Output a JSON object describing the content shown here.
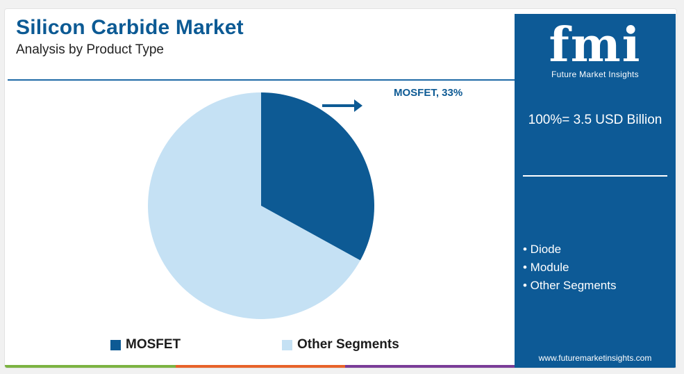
{
  "header": {
    "title": "Silicon Carbide Market",
    "subtitle": "Analysis by Product Type"
  },
  "chart_data": {
    "type": "pie",
    "categories": [
      "MOSFET",
      "Other Segments"
    ],
    "values": [
      33,
      67
    ],
    "colors": [
      "#0d5a94",
      "#c5e1f4"
    ],
    "annotation": "MOSFET, 33%",
    "legend": [
      {
        "label": "MOSFET",
        "color": "#0d5a94"
      },
      {
        "label": "Other Segments",
        "color": "#c5e1f4"
      }
    ],
    "legend_position": "bottom"
  },
  "sidebar": {
    "logo_text": "fmi",
    "logo_subtitle": "Future Market Insights",
    "total": "100%= 3.5 USD Billion",
    "other_segments": [
      "• Diode",
      "• Module",
      "• Other Segments"
    ],
    "url": "www.futuremarketinsights.com"
  },
  "colors": {
    "brand_blue": "#0d5a96",
    "bottom_bar": [
      "#7cb342",
      "#e8632a",
      "#7a3d98",
      "#0d5a96"
    ]
  }
}
